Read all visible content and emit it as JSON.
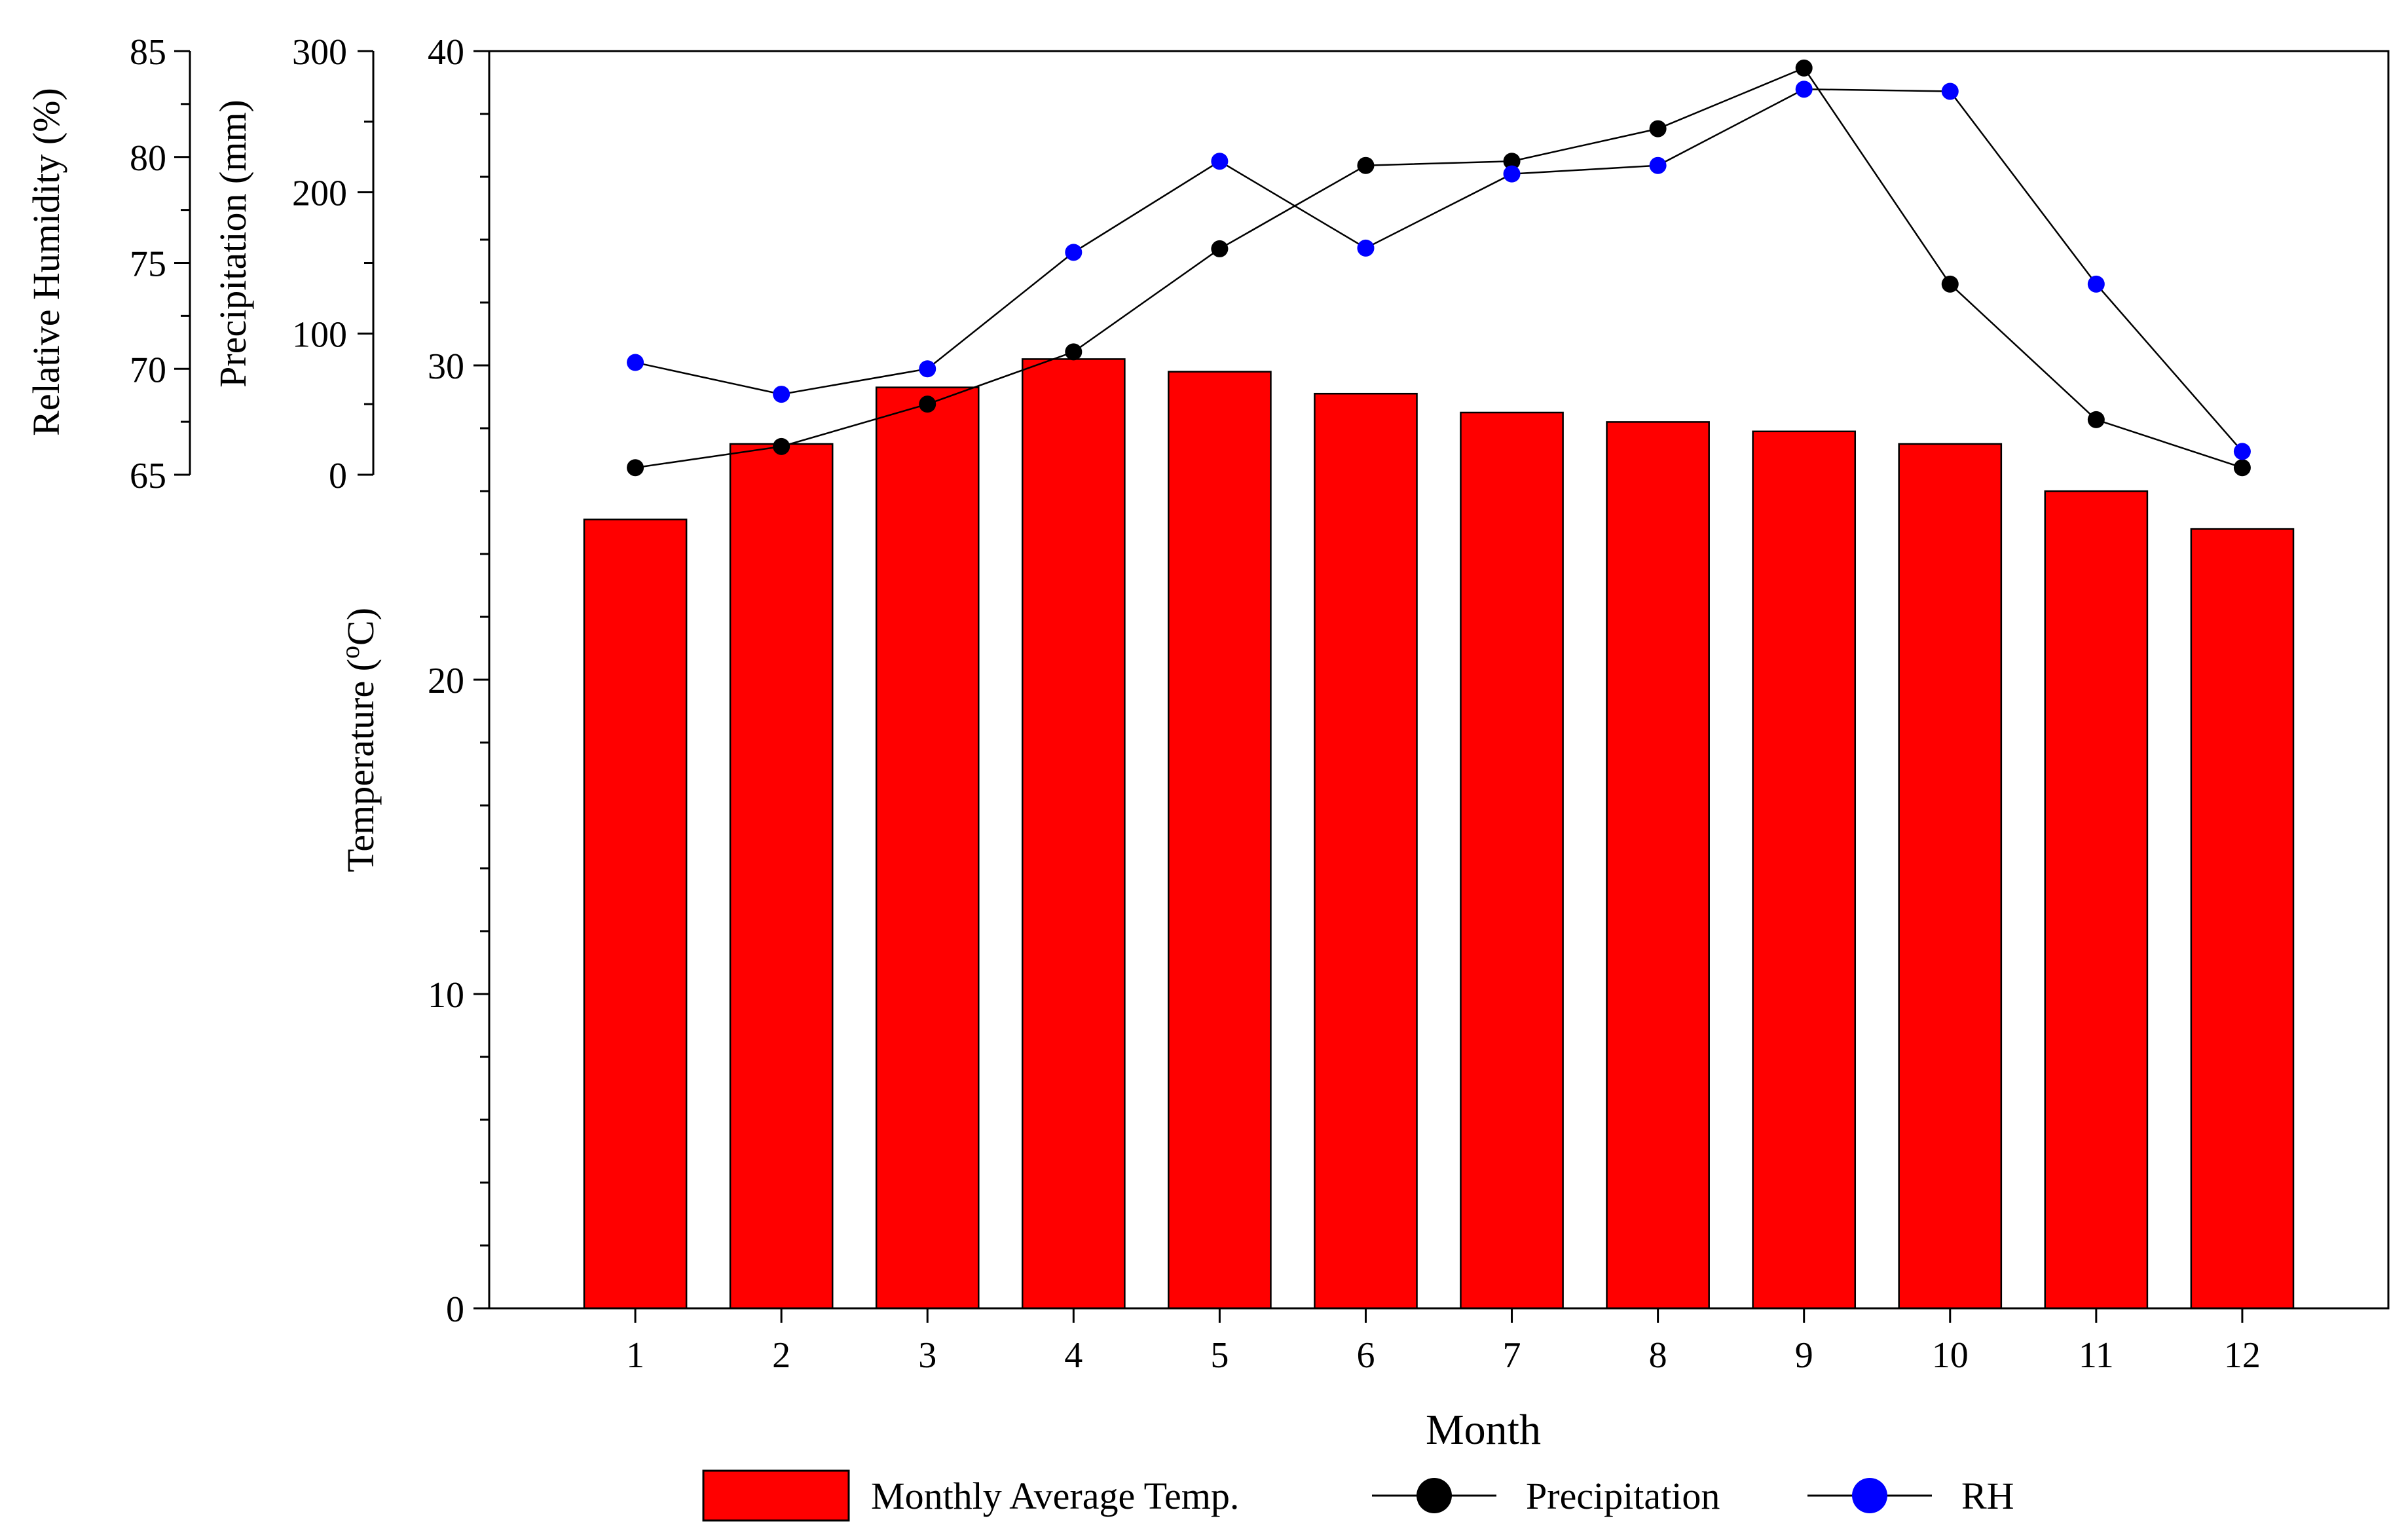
{
  "chart_data": {
    "type": "bar",
    "title": "",
    "categories": [
      "1",
      "2",
      "3",
      "4",
      "5",
      "6",
      "7",
      "8",
      "9",
      "10",
      "11",
      "12"
    ],
    "xlabel": "Month",
    "axes": {
      "temperature": {
        "label": "Temperature (",
        "label_sup": "o",
        "label_end": "C)",
        "range": [
          0,
          40
        ],
        "major_ticks": [
          0,
          10,
          20,
          30,
          40
        ],
        "minor_step": 2
      },
      "precipitation": {
        "label": "Precipitation (mm)",
        "range": [
          0,
          300
        ],
        "major_ticks": [
          0,
          100,
          200,
          300
        ],
        "minor_step": 50
      },
      "humidity": {
        "label": "Relative Humidity (%)",
        "range": [
          65,
          85
        ],
        "major_ticks": [
          65,
          70,
          75,
          80,
          85
        ],
        "minor_step": 2.5
      }
    },
    "series": [
      {
        "name": "Monthly Average Temp.",
        "type": "bar",
        "axis": "temperature",
        "color": "#FF0000",
        "values": [
          25.1,
          27.5,
          29.3,
          30.2,
          29.8,
          29.1,
          28.5,
          28.2,
          27.9,
          27.5,
          26.0,
          24.8
        ]
      },
      {
        "name": "Precipitation",
        "type": "line",
        "axis": "precipitation",
        "color": "#000000",
        "values": [
          5,
          20,
          50,
          87,
          160,
          219,
          222,
          245,
          288,
          135,
          39,
          5
        ]
      },
      {
        "name": "RH",
        "type": "line",
        "axis": "humidity",
        "color": "#0000FF",
        "values": [
          70.3,
          68.8,
          70.0,
          75.5,
          79.8,
          75.7,
          79.2,
          79.6,
          83.2,
          83.1,
          74.0,
          66.1
        ]
      }
    ],
    "legend": {
      "placement": "bottom",
      "items": [
        "Monthly Average Temp.",
        "Precipitation",
        "RH"
      ]
    },
    "grid": false
  }
}
